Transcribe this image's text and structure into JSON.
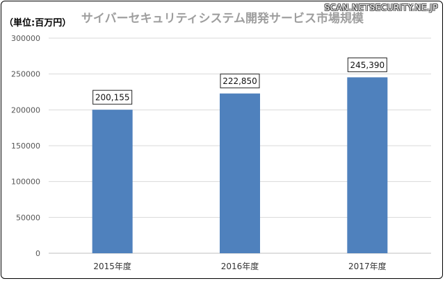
{
  "header": {
    "title": "サイバーセキュリティシステム開発サービス市場規模",
    "unit_label": "（単位:百万円）",
    "watermark": "SCAN.NETSECURITY.NE.JP"
  },
  "colors": {
    "bar": "#4f81bd",
    "grid": "#d9d9d9",
    "title": "#9e9e9e"
  },
  "chart_data": {
    "type": "bar",
    "categories": [
      "2015年度",
      "2016年度",
      "2017年度"
    ],
    "values": [
      200155,
      222850,
      245390
    ],
    "data_labels": [
      "200,155",
      "222,850",
      "245,390"
    ],
    "ylim": [
      0,
      300000
    ],
    "yticks": [
      "0",
      "50000",
      "100000",
      "150000",
      "200000",
      "250000",
      "300000"
    ],
    "title": "サイバーセキュリティシステム開発サービス市場規模",
    "xlabel": "",
    "ylabel": "",
    "grid": true,
    "legend": "none"
  }
}
